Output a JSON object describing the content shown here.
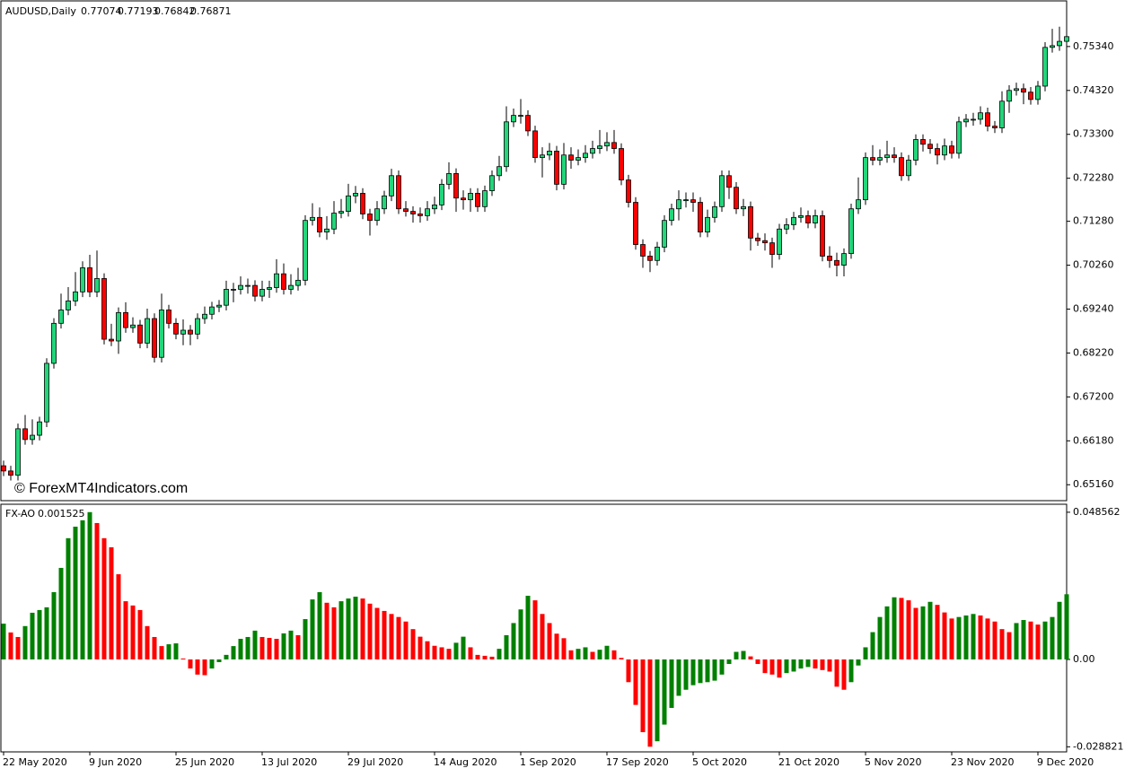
{
  "chart_data": [
    {
      "type": "candlestick",
      "title": "AUDUSD,Daily",
      "header_values": [
        0.77074,
        0.77193,
        0.76842,
        0.76871
      ],
      "watermark": "© ForexMT4Indicators.com",
      "up_color": "#22d67a",
      "down_color": "#ff0000",
      "ylim": [
        0.6479,
        0.764
      ],
      "yticks": [
        {
          "value": 0.7534,
          "label": "0.75340"
        },
        {
          "value": 0.7432,
          "label": "0.74320"
        },
        {
          "value": 0.733,
          "label": "0.73300"
        },
        {
          "value": 0.7228,
          "label": "0.72280"
        },
        {
          "value": 0.7128,
          "label": "0.71280"
        },
        {
          "value": 0.7026,
          "label": "0.70260"
        },
        {
          "value": 0.6924,
          "label": "0.69240"
        },
        {
          "value": 0.6822,
          "label": "0.68220"
        },
        {
          "value": 0.672,
          "label": "0.67200"
        },
        {
          "value": 0.6618,
          "label": "0.66180"
        },
        {
          "value": 0.6516,
          "label": "0.65160"
        }
      ],
      "open": [
        0.656,
        0.6548,
        0.6538,
        0.6646,
        0.6621,
        0.6631,
        0.6662,
        0.6798,
        0.6891,
        0.6922,
        0.6943,
        0.6964,
        0.702,
        0.6964,
        0.6995,
        0.6854,
        0.685,
        0.6916,
        0.6881,
        0.6887,
        0.6845,
        0.6902,
        0.6812,
        0.6922,
        0.6891,
        0.6866,
        0.6875,
        0.6866,
        0.6902,
        0.6912,
        0.6929,
        0.6933,
        0.697,
        0.697,
        0.6979,
        0.6979,
        0.6954,
        0.697,
        0.6974,
        0.7006,
        0.697,
        0.6979,
        0.6991,
        0.713,
        0.7137,
        0.7103,
        0.711,
        0.7147,
        0.7151,
        0.7187,
        0.7193,
        0.7145,
        0.713,
        0.7157,
        0.7187,
        0.7234,
        0.7157,
        0.7151,
        0.7145,
        0.7141,
        0.7157,
        0.7166,
        0.7214,
        0.7239,
        0.7182,
        0.7178,
        0.7193,
        0.7162,
        0.7199,
        0.7234,
        0.7255,
        0.7359,
        0.7374,
        0.7374,
        0.7338,
        0.7276,
        0.7282,
        0.7291,
        0.7214,
        0.7282,
        0.727,
        0.7276,
        0.7286,
        0.7297,
        0.7303,
        0.7311,
        0.7297,
        0.7224,
        0.7172,
        0.7074,
        0.7047,
        0.7037,
        0.7068,
        0.713,
        0.7157,
        0.7178,
        0.7178,
        0.7172,
        0.7103,
        0.7137,
        0.7162,
        0.7234,
        0.7207,
        0.7157,
        0.7162,
        0.7089,
        0.7083,
        0.7078,
        0.7051,
        0.711,
        0.712,
        0.7137,
        0.7141,
        0.7124,
        0.7141,
        0.7047,
        0.7037,
        0.7026,
        0.7053,
        0.7157,
        0.7178,
        0.7276,
        0.727,
        0.7276,
        0.7282,
        0.7276,
        0.7234,
        0.727,
        0.7318,
        0.7307,
        0.7297,
        0.7282,
        0.7303,
        0.7286,
        0.7359,
        0.7365,
        0.7365,
        0.738,
        0.7349,
        0.7345,
        0.7407,
        0.7432,
        0.7436,
        0.7428,
        0.7411,
        0.7442,
        0.7532,
        0.7536,
        0.7546
      ],
      "high": [
        0.6572,
        0.656,
        0.6658,
        0.6678,
        0.6668,
        0.6674,
        0.681,
        0.6903,
        0.696,
        0.6975,
        0.701,
        0.7035,
        0.705,
        0.706,
        0.7007,
        0.689,
        0.6928,
        0.694,
        0.6905,
        0.6899,
        0.6925,
        0.6914,
        0.696,
        0.6934,
        0.6903,
        0.69,
        0.6887,
        0.6914,
        0.693,
        0.6941,
        0.6945,
        0.699,
        0.6985,
        0.7,
        0.6995,
        0.6991,
        0.699,
        0.699,
        0.704,
        0.703,
        0.7005,
        0.702,
        0.7142,
        0.717,
        0.716,
        0.714,
        0.7175,
        0.718,
        0.7215,
        0.721,
        0.7205,
        0.7157,
        0.7175,
        0.7199,
        0.725,
        0.7246,
        0.7175,
        0.7163,
        0.716,
        0.7175,
        0.7185,
        0.7226,
        0.7265,
        0.7251,
        0.72,
        0.7205,
        0.7205,
        0.7211,
        0.7246,
        0.728,
        0.7395,
        0.739,
        0.7412,
        0.7386,
        0.735,
        0.73,
        0.731,
        0.7303,
        0.731,
        0.73,
        0.7295,
        0.7305,
        0.7315,
        0.734,
        0.7335,
        0.734,
        0.7309,
        0.7236,
        0.7184,
        0.7086,
        0.7059,
        0.708,
        0.7142,
        0.7169,
        0.72,
        0.7195,
        0.7195,
        0.7184,
        0.7155,
        0.7174,
        0.7246,
        0.7246,
        0.7219,
        0.718,
        0.7174,
        0.7101,
        0.71,
        0.709,
        0.7122,
        0.7135,
        0.715,
        0.716,
        0.7153,
        0.7155,
        0.7153,
        0.707,
        0.7055,
        0.7065,
        0.7169,
        0.723,
        0.7288,
        0.7305,
        0.7295,
        0.7315,
        0.73,
        0.7288,
        0.7282,
        0.733,
        0.733,
        0.7319,
        0.7309,
        0.732,
        0.7315,
        0.7371,
        0.7377,
        0.738,
        0.7395,
        0.7392,
        0.7361,
        0.743,
        0.7444,
        0.745,
        0.7448,
        0.744,
        0.7454,
        0.7544,
        0.7575,
        0.758,
        0.7575
      ],
      "low": [
        0.6536,
        0.6526,
        0.6526,
        0.6609,
        0.6609,
        0.6619,
        0.665,
        0.6786,
        0.6879,
        0.691,
        0.6931,
        0.6952,
        0.6952,
        0.6952,
        0.6842,
        0.6838,
        0.682,
        0.6869,
        0.6869,
        0.6833,
        0.6833,
        0.68,
        0.68,
        0.6879,
        0.6854,
        0.684,
        0.684,
        0.6854,
        0.689,
        0.69,
        0.6917,
        0.6921,
        0.694,
        0.6958,
        0.696,
        0.6942,
        0.6942,
        0.695,
        0.6962,
        0.6958,
        0.6958,
        0.6967,
        0.6979,
        0.7118,
        0.7091,
        0.7085,
        0.7098,
        0.7135,
        0.7139,
        0.717,
        0.7133,
        0.7095,
        0.7118,
        0.7145,
        0.7175,
        0.7145,
        0.7139,
        0.7125,
        0.7125,
        0.7129,
        0.7145,
        0.7154,
        0.7202,
        0.715,
        0.7155,
        0.715,
        0.715,
        0.715,
        0.7187,
        0.7222,
        0.7243,
        0.7347,
        0.7355,
        0.7326,
        0.7264,
        0.723,
        0.727,
        0.72,
        0.7202,
        0.725,
        0.7258,
        0.7264,
        0.7274,
        0.7285,
        0.7291,
        0.7285,
        0.7212,
        0.716,
        0.7062,
        0.702,
        0.701,
        0.7025,
        0.7056,
        0.7118,
        0.713,
        0.716,
        0.715,
        0.7091,
        0.7091,
        0.7125,
        0.715,
        0.718,
        0.7145,
        0.714,
        0.706,
        0.7071,
        0.706,
        0.702,
        0.7039,
        0.7098,
        0.7108,
        0.7125,
        0.7112,
        0.7112,
        0.7035,
        0.702,
        0.7,
        0.7,
        0.7041,
        0.7145,
        0.7166,
        0.7258,
        0.7258,
        0.7264,
        0.7264,
        0.7222,
        0.7222,
        0.7258,
        0.729,
        0.7285,
        0.726,
        0.727,
        0.7274,
        0.7274,
        0.7347,
        0.735,
        0.7353,
        0.7337,
        0.7333,
        0.7333,
        0.738,
        0.742,
        0.74,
        0.7399,
        0.7399,
        0.743,
        0.752,
        0.7524,
        0.7515
      ],
      "close": [
        0.6548,
        0.6538,
        0.6646,
        0.6621,
        0.6631,
        0.6662,
        0.6798,
        0.6891,
        0.6922,
        0.6943,
        0.6964,
        0.702,
        0.6964,
        0.6995,
        0.6854,
        0.685,
        0.6916,
        0.6881,
        0.6887,
        0.6845,
        0.6902,
        0.6812,
        0.6922,
        0.6891,
        0.6866,
        0.6875,
        0.6866,
        0.6902,
        0.6912,
        0.6929,
        0.6933,
        0.697,
        0.697,
        0.6979,
        0.6979,
        0.6954,
        0.697,
        0.6974,
        0.7006,
        0.697,
        0.6979,
        0.6991,
        0.713,
        0.7137,
        0.7103,
        0.711,
        0.7147,
        0.7151,
        0.7187,
        0.7193,
        0.7145,
        0.713,
        0.7157,
        0.7187,
        0.7234,
        0.7157,
        0.7151,
        0.7145,
        0.7141,
        0.7157,
        0.7166,
        0.7214,
        0.7239,
        0.7182,
        0.7178,
        0.7193,
        0.7162,
        0.7199,
        0.7234,
        0.7255,
        0.7359,
        0.7374,
        0.7374,
        0.7338,
        0.7276,
        0.7282,
        0.7291,
        0.7214,
        0.7282,
        0.727,
        0.7276,
        0.7286,
        0.7297,
        0.7303,
        0.7311,
        0.7297,
        0.7224,
        0.7172,
        0.7074,
        0.7047,
        0.7037,
        0.7068,
        0.713,
        0.7157,
        0.7178,
        0.7178,
        0.7172,
        0.7103,
        0.7137,
        0.7162,
        0.7234,
        0.7207,
        0.7157,
        0.7162,
        0.7089,
        0.7083,
        0.7078,
        0.7051,
        0.711,
        0.712,
        0.7137,
        0.7141,
        0.7124,
        0.7141,
        0.7047,
        0.7037,
        0.7026,
        0.7053,
        0.7157,
        0.7178,
        0.7276,
        0.727,
        0.7276,
        0.7282,
        0.7276,
        0.7234,
        0.727,
        0.7318,
        0.7307,
        0.7297,
        0.7282,
        0.7303,
        0.7286,
        0.7359,
        0.7365,
        0.7365,
        0.738,
        0.7349,
        0.7345,
        0.7407,
        0.7432,
        0.7436,
        0.7428,
        0.7411,
        0.7442,
        0.7532,
        0.7536,
        0.7546,
        0.7557
      ]
    },
    {
      "type": "bar",
      "title": "FX-AO",
      "current_value": 0.001525,
      "up_color": "#008000",
      "down_color": "#ff0000",
      "ylim": [
        -0.0305,
        0.0512
      ],
      "yticks": [
        0.048562,
        {
          "value": 0,
          "label": "0.00"
        },
        -0.028821
      ],
      "categories": [
        "22 May 2020",
        null,
        null,
        null,
        null,
        null,
        null,
        null,
        null,
        null,
        null,
        null,
        "9 Jun 2020",
        null,
        null,
        null,
        null,
        null,
        null,
        null,
        null,
        null,
        null,
        null,
        "25 Jun 2020",
        null,
        null,
        null,
        null,
        null,
        null,
        null,
        null,
        null,
        null,
        null,
        "13 Jul 2020",
        null,
        null,
        null,
        null,
        null,
        null,
        null,
        null,
        null,
        null,
        null,
        "29 Jul 2020",
        null,
        null,
        null,
        null,
        null,
        null,
        null,
        null,
        null,
        null,
        null,
        "14 Aug 2020",
        null,
        null,
        null,
        null,
        null,
        null,
        null,
        null,
        null,
        null,
        null,
        "1 Sep 2020",
        null,
        null,
        null,
        null,
        null,
        null,
        null,
        null,
        null,
        null,
        null,
        "17 Sep 2020",
        null,
        null,
        null,
        null,
        null,
        null,
        null,
        null,
        null,
        null,
        null,
        "5 Oct 2020",
        null,
        null,
        null,
        null,
        null,
        null,
        null,
        null,
        null,
        null,
        null,
        "21 Oct 2020",
        null,
        null,
        null,
        null,
        null,
        null,
        null,
        null,
        null,
        null,
        null,
        "5 Nov 2020",
        null,
        null,
        null,
        null,
        null,
        null,
        null,
        null,
        null,
        null,
        null,
        "23 Nov 2020",
        null,
        null,
        null,
        null,
        null,
        null,
        null,
        null,
        null,
        null,
        null,
        "9 Dec 2020",
        null,
        null,
        null,
        null
      ],
      "values": [
        0.0118,
        0.0089,
        0.0074,
        0.011,
        0.0154,
        0.0163,
        0.0172,
        0.0222,
        0.0302,
        0.04,
        0.0438,
        0.0459,
        0.0486,
        0.045,
        0.04,
        0.037,
        0.0281,
        0.0192,
        0.0178,
        0.0163,
        0.011,
        0.0074,
        0.0044,
        0.005,
        0.0053,
        0.0003,
        -0.003,
        -0.005,
        -0.0052,
        -0.003,
        -0.0009,
        0.0015,
        0.0044,
        0.0068,
        0.0074,
        0.0095,
        0.0074,
        0.0071,
        0.0068,
        0.0086,
        0.0095,
        0.008,
        0.0133,
        0.0198,
        0.0222,
        0.0187,
        0.0172,
        0.0192,
        0.0201,
        0.0207,
        0.0201,
        0.0184,
        0.017,
        0.016,
        0.015,
        0.014,
        0.0125,
        0.01,
        0.0075,
        0.006,
        0.0045,
        0.004,
        0.0035,
        0.0055,
        0.0075,
        0.004,
        0.0015,
        0.0012,
        0.0009,
        0.0035,
        0.008,
        0.012,
        0.0165,
        0.021,
        0.0195,
        0.015,
        0.012,
        0.0085,
        0.007,
        0.003,
        0.0035,
        0.004,
        0.0025,
        0.0032,
        0.0045,
        0.003,
        0.0005,
        -0.0075,
        -0.015,
        -0.024,
        -0.0288,
        -0.027,
        -0.0215,
        -0.016,
        -0.012,
        -0.01,
        -0.0085,
        -0.0078,
        -0.0075,
        -0.007,
        -0.005,
        -0.0015,
        0.0025,
        0.0028,
        0.001,
        -0.0015,
        -0.0045,
        -0.005,
        -0.006,
        -0.0045,
        -0.004,
        -0.003,
        -0.0025,
        -0.003,
        -0.0035,
        -0.004,
        -0.009,
        -0.01,
        -0.0075,
        -0.002,
        0.004,
        0.009,
        0.014,
        0.0175,
        0.0205,
        0.0203,
        0.0195,
        0.017,
        0.0175,
        0.019,
        0.018,
        0.0155,
        0.0135,
        0.014,
        0.0145,
        0.015,
        0.0145,
        0.0135,
        0.0125,
        0.01,
        0.009,
        0.012,
        0.013,
        0.0125,
        0.0115,
        0.0125,
        0.014,
        0.019,
        0.0215
      ]
    }
  ]
}
